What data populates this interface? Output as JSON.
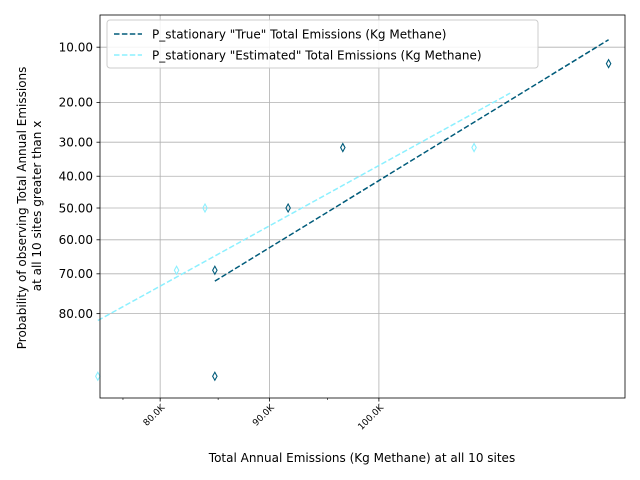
{
  "chart_data": {
    "type": "scatter",
    "xlabel": "Total Annual Emissions (Kg Methane) at all 10 sites",
    "ylabel_lines": [
      "Probability of observing Total Annual Emissions",
      "at all 10 sites greater than x"
    ],
    "x_scale": "linear",
    "y_scale": "probit",
    "xlim": [
      74500,
      122500
    ],
    "ylim": [
      93.5,
      6.2
    ],
    "grid": true,
    "legend_position": "top-left",
    "x_ticks": [
      {
        "value": 80000,
        "label": "80.0K"
      },
      {
        "value": 90000,
        "label": "90.0K"
      },
      {
        "value": 100000,
        "label": "100.0K"
      }
    ],
    "x_minor_ticks": [
      76600,
      85300,
      95300
    ],
    "y_ticks": [
      {
        "value": 10,
        "label": "10.00"
      },
      {
        "value": 20,
        "label": "20.00"
      },
      {
        "value": 30,
        "label": "30.00"
      },
      {
        "value": 40,
        "label": "40.00"
      },
      {
        "value": 50,
        "label": "50.00"
      },
      {
        "value": 60,
        "label": "60.00"
      },
      {
        "value": 70,
        "label": "70.00"
      },
      {
        "value": 80,
        "label": "80.00"
      }
    ],
    "series": [
      {
        "name": "P_stationary \"True\" Total Emissions (Kg Methane)",
        "color": "#005b7a",
        "points": [
          {
            "x": 85000,
            "y": 91
          },
          {
            "x": 85000,
            "y": 69
          },
          {
            "x": 91700,
            "y": 50
          },
          {
            "x": 96700,
            "y": 31.5
          },
          {
            "x": 121000,
            "y": 12.5
          }
        ],
        "fit_line": [
          {
            "x": 85000,
            "y": 72
          },
          {
            "x": 121000,
            "y": 9
          }
        ]
      },
      {
        "name": "P_stationary \"Estimated\" Total Emissions (Kg Methane)",
        "color": "#8cf0ff",
        "points": [
          {
            "x": 74300,
            "y": 91
          },
          {
            "x": 81500,
            "y": 69
          },
          {
            "x": 84100,
            "y": 50
          },
          {
            "x": 108700,
            "y": 31.5
          }
        ],
        "fit_line": [
          {
            "x": 74300,
            "y": 81.5
          },
          {
            "x": 112000,
            "y": 18
          }
        ]
      }
    ]
  }
}
